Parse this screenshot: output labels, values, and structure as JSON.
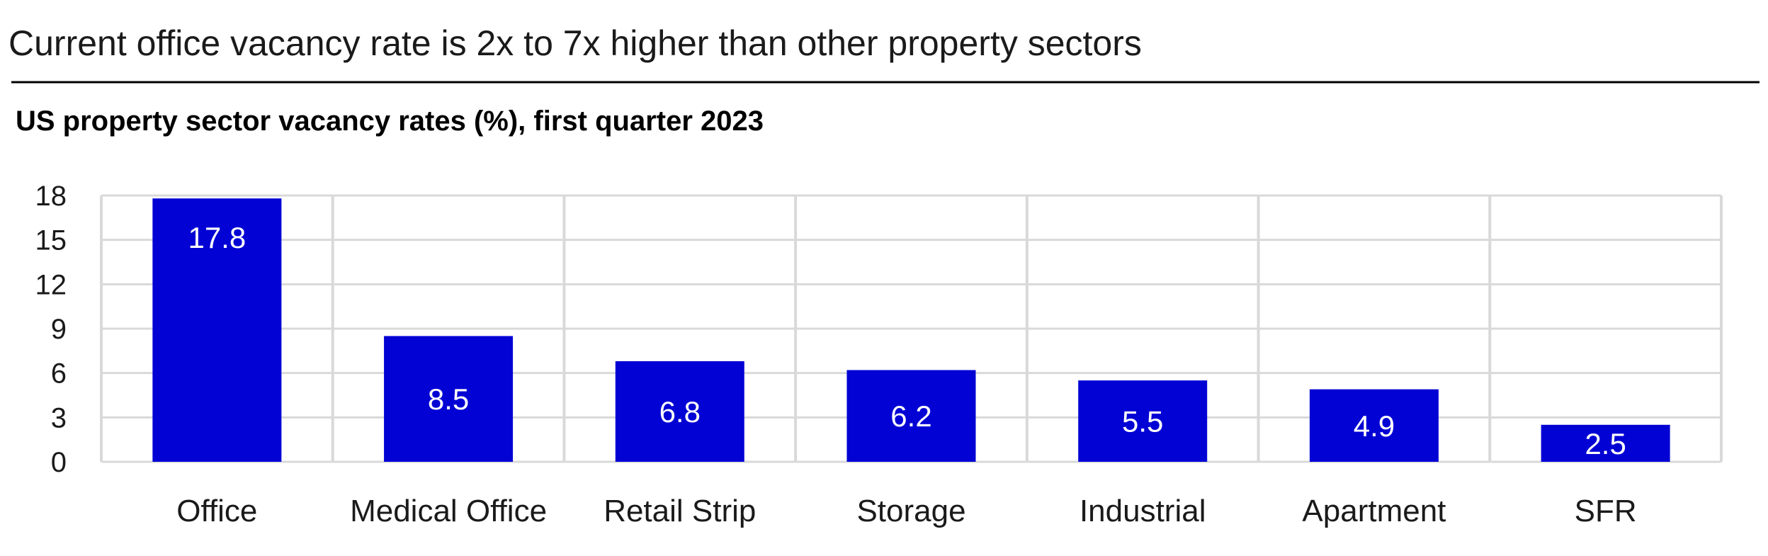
{
  "headline": "Current office vacancy rate is 2x to 7x higher than other property sectors",
  "chart_data": {
    "type": "bar",
    "title": "US property sector vacancy rates (%), first quarter 2023",
    "categories": [
      "Office",
      "Medical Office",
      "Retail Strip",
      "Storage",
      "Industrial",
      "Apartment",
      "SFR"
    ],
    "values": [
      17.8,
      8.5,
      6.8,
      6.2,
      5.5,
      4.9,
      2.5
    ],
    "value_labels": [
      "17.8",
      "8.5",
      "6.8",
      "6.2",
      "5.5",
      "4.9",
      "2.5"
    ],
    "yticks": [
      0,
      3,
      6,
      9,
      12,
      15,
      18
    ],
    "ylim": [
      0,
      18
    ],
    "xlabel": "",
    "ylabel": "",
    "grid": true,
    "legend": "none",
    "colors": {
      "bar": "#0202d4",
      "grid": "#d9d9d9",
      "rule": "#000000",
      "label": "#ffffff"
    }
  }
}
